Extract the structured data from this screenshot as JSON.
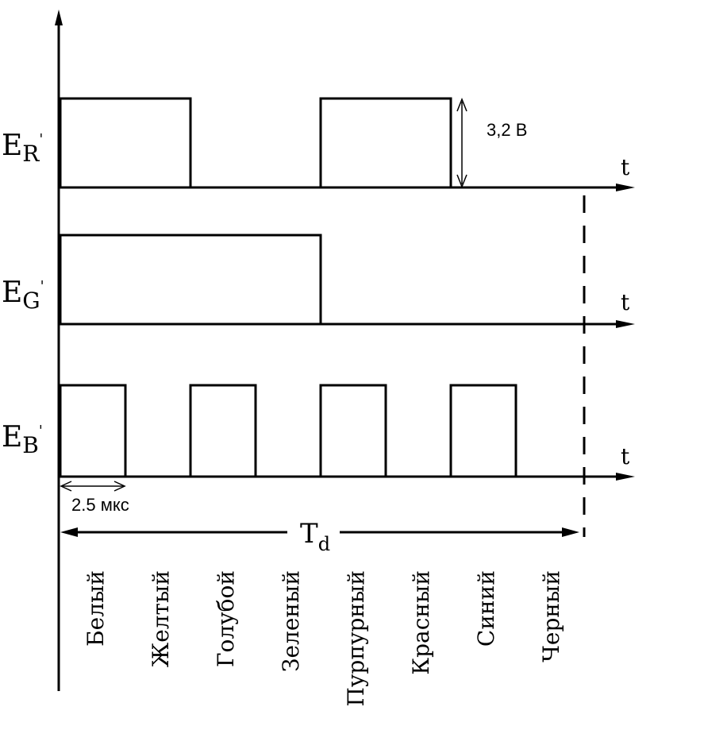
{
  "signals": [
    {
      "name": "E_R",
      "label_main": "E",
      "label_sub": "R",
      "label_mark": "'",
      "axis_label": "t",
      "levels": [
        1,
        1,
        0,
        0,
        1,
        1,
        0,
        0
      ]
    },
    {
      "name": "E_G",
      "label_main": "E",
      "label_sub": "G",
      "label_mark": "'",
      "axis_label": "t",
      "levels": [
        1,
        1,
        1,
        1,
        0,
        0,
        0,
        0
      ]
    },
    {
      "name": "E_B",
      "label_main": "E",
      "label_sub": "B",
      "label_mark": "'",
      "axis_label": "t",
      "levels": [
        1,
        0,
        1,
        0,
        1,
        0,
        1,
        0
      ]
    }
  ],
  "amplitude_label": "3,2 В",
  "step_label": "2.5 мкс",
  "period_label_main": "T",
  "period_label_sub": "d",
  "colors": [
    "Белый",
    "Желтый",
    "Голубой",
    "Зеленый",
    "Пурпурный",
    "Красный",
    "Синий",
    "Черный"
  ],
  "line_color": "#000000"
}
